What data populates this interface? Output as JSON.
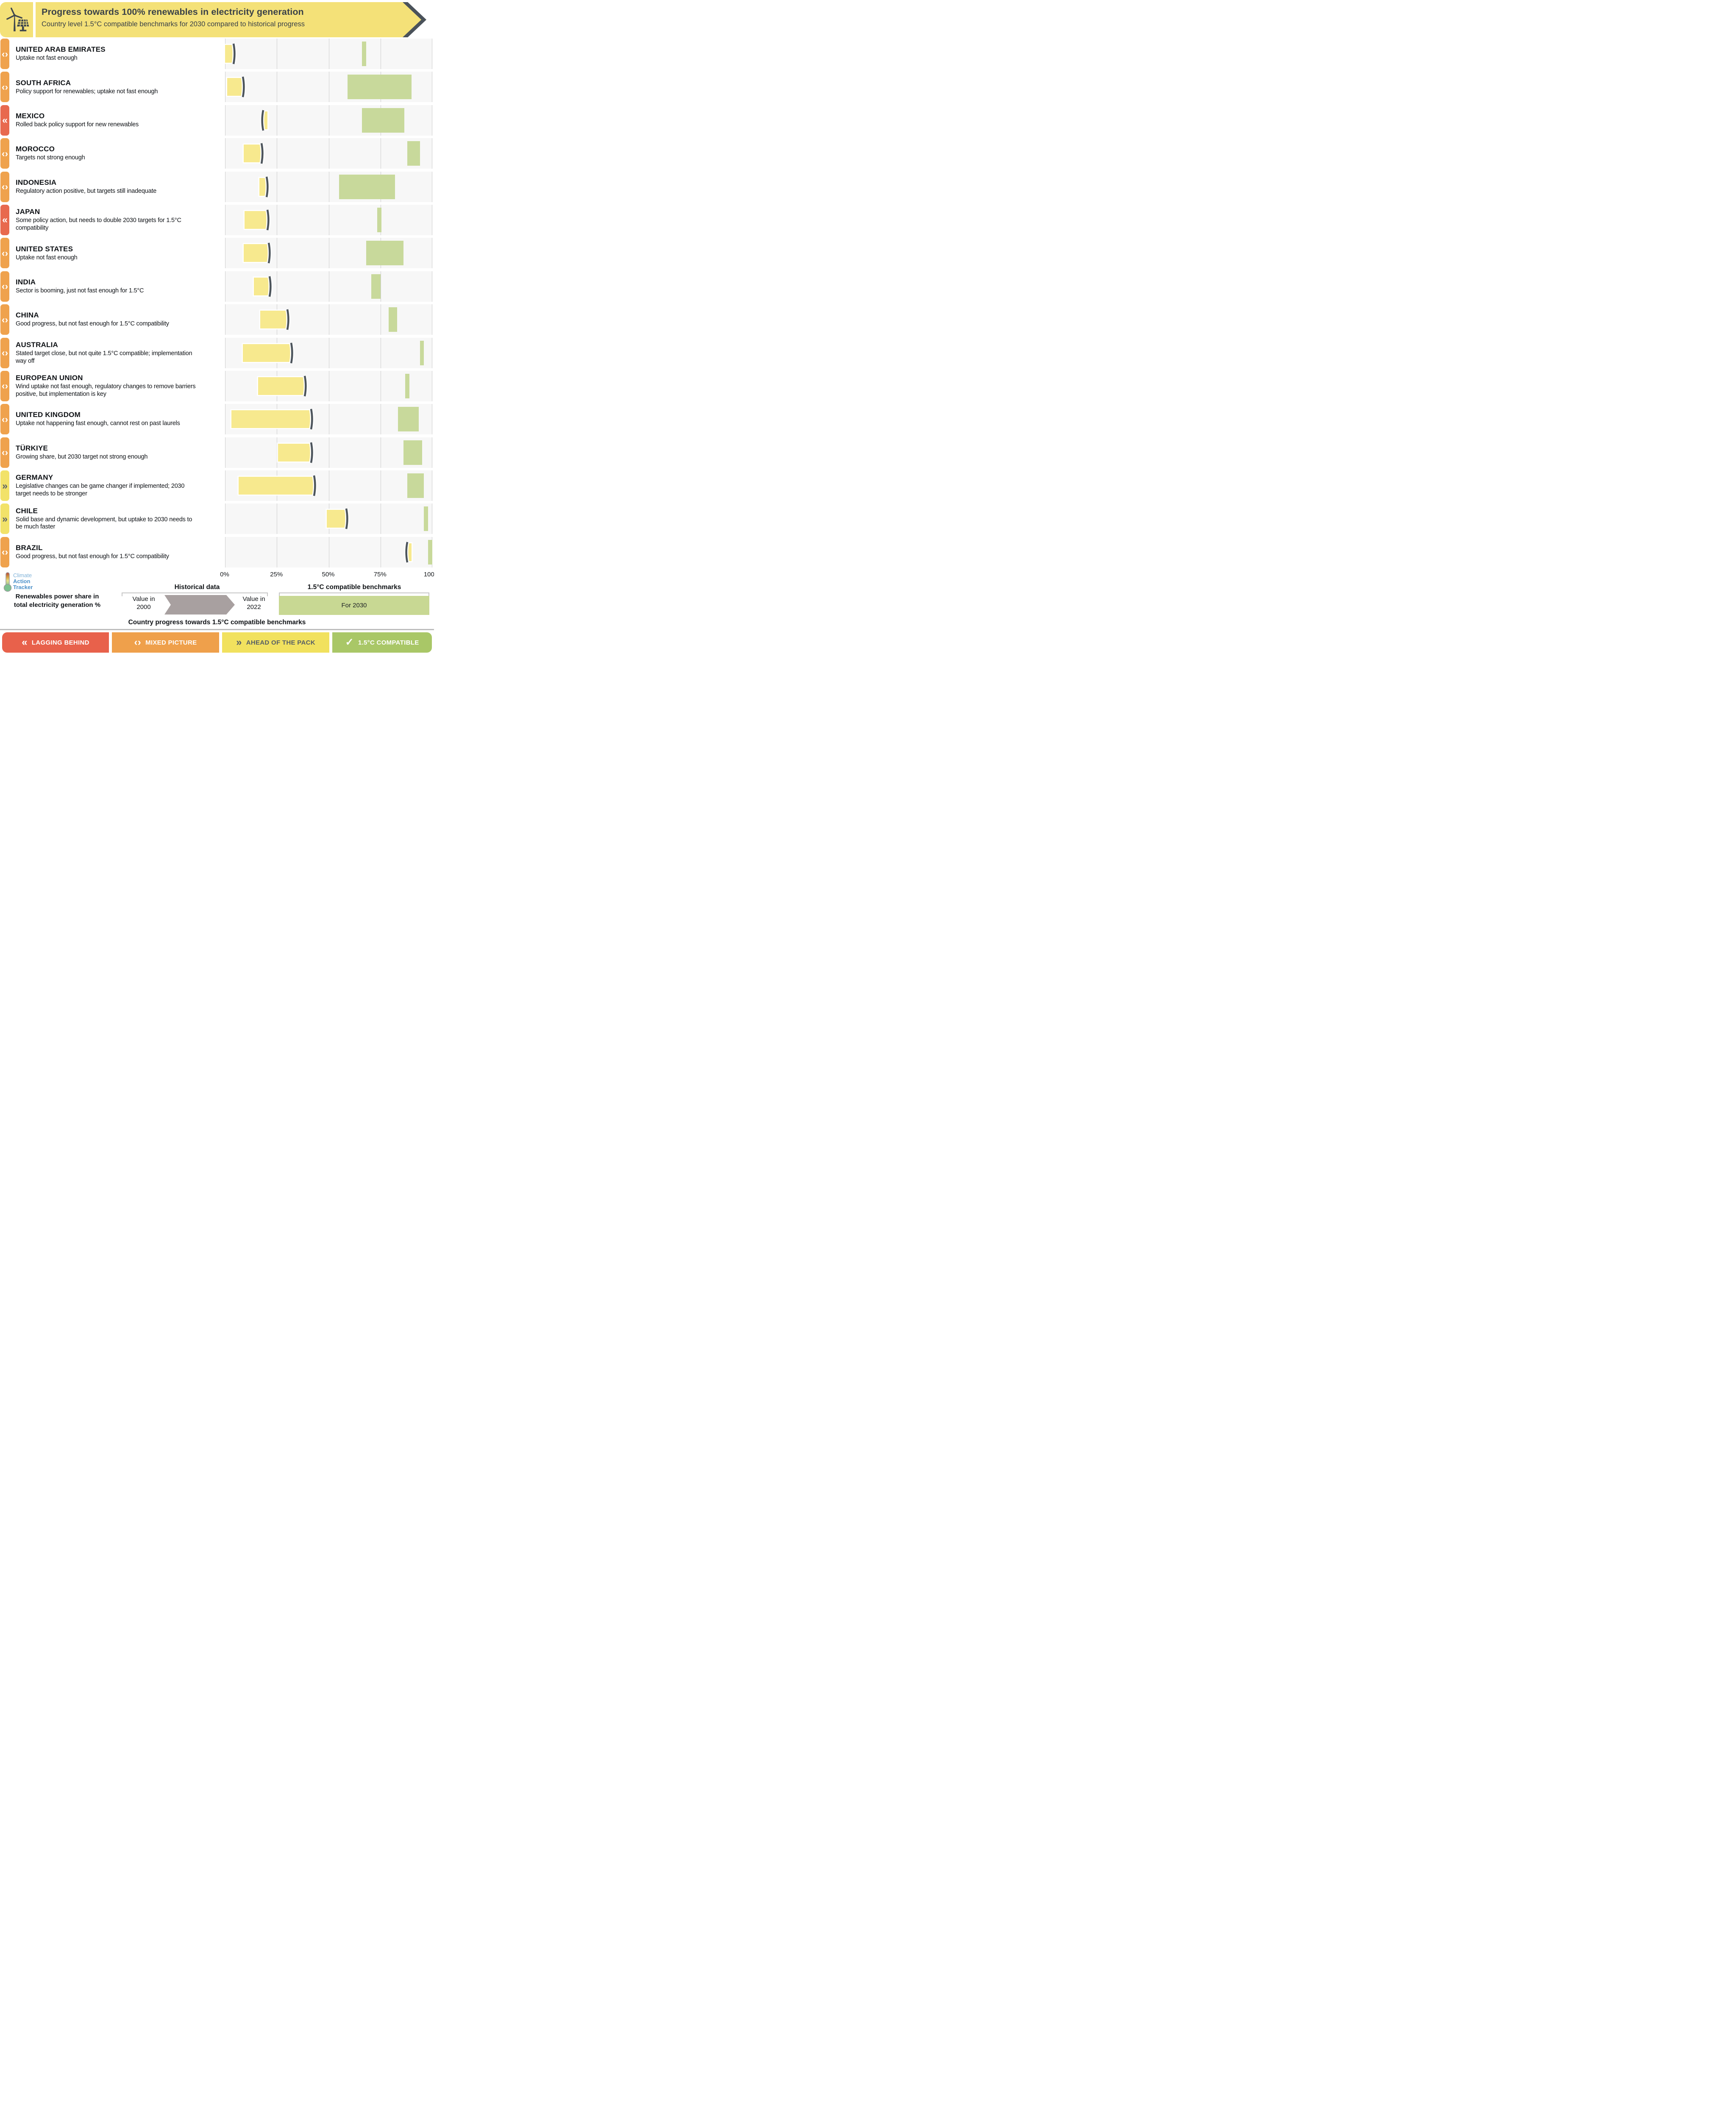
{
  "header": {
    "title": "Progress towards 100% renewables in electricity generation",
    "subtitle": "Country level 1.5°C compatible benchmarks for 2030 compared to historical progress"
  },
  "colors": {
    "header_yellow": "#f4e178",
    "banner_edge_dark": "#4a525a",
    "panel_bg": "#f7f7f7",
    "gridline": "#cdcdcd",
    "historical_bar_yellow": "#f7e98e",
    "value_2022_marker": "#4d555c",
    "benchmark_green": "#c8d99b",
    "legend_arrow_gray": "#a8a0a0"
  },
  "category_styles": {
    "lagging": {
      "color": "#e8694e",
      "icon": "«",
      "icon_color": "#ffffff"
    },
    "mixed": {
      "color": "#efa24d",
      "icon": "‹›",
      "icon_color": "#ffffff"
    },
    "ahead": {
      "color": "#f2e269",
      "icon": "»",
      "icon_color": "#565e66"
    }
  },
  "chart_data": {
    "type": "bar",
    "orientation": "horizontal",
    "title": "Progress towards 100% renewables in electricity generation",
    "xlabel": "Renewables power share in total electricity generation %",
    "x_range": [
      0,
      100
    ],
    "x_ticks": [
      "0%",
      "25%",
      "50%",
      "75%",
      "100%"
    ],
    "grid": true,
    "series": [
      {
        "name": "Historical data: value in 2000 to value in 2022"
      },
      {
        "name": "1.5°C compatible benchmark for 2030 (range)"
      }
    ],
    "countries": [
      {
        "name": "UNITED ARAB EMIRATES",
        "note": "Uptake not fast enough",
        "category": "mixed",
        "value_2000": 0,
        "value_2022": 4,
        "benchmark_low": 66,
        "benchmark_high": 68
      },
      {
        "name": "SOUTH AFRICA",
        "note": "Policy support for renewables; uptake not fast enough",
        "category": "mixed",
        "value_2000": 1,
        "value_2022": 8.5,
        "benchmark_low": 59,
        "benchmark_high": 90
      },
      {
        "name": "MEXICO",
        "note": "Rolled back policy support for new renewables",
        "category": "lagging",
        "value_2000": 20.5,
        "value_2022": 18.5,
        "benchmark_low": 66,
        "benchmark_high": 86.5
      },
      {
        "name": "MOROCCO",
        "note": "Targets not strong enough",
        "category": "mixed",
        "value_2000": 9,
        "value_2022": 17.5,
        "benchmark_low": 88,
        "benchmark_high": 94
      },
      {
        "name": "INDONESIA",
        "note": "Regulatory action positive, but targets still inadequate",
        "category": "mixed",
        "value_2000": 16.5,
        "value_2022": 20,
        "benchmark_low": 55,
        "benchmark_high": 82
      },
      {
        "name": "JAPAN",
        "note": "Some policy action, but needs to double 2030 targets for 1.5°C compatibility",
        "category": "lagging",
        "value_2000": 9.5,
        "value_2022": 20.5,
        "benchmark_low": 73.5,
        "benchmark_high": 75.5
      },
      {
        "name": "UNITED STATES",
        "note": "Uptake not fast enough",
        "category": "mixed",
        "value_2000": 9,
        "value_2022": 21,
        "benchmark_low": 68,
        "benchmark_high": 86
      },
      {
        "name": "INDIA",
        "note": "Sector is booming, just not fast enough for 1.5°C",
        "category": "mixed",
        "value_2000": 14,
        "value_2022": 21.5,
        "benchmark_low": 70.5,
        "benchmark_high": 75
      },
      {
        "name": "CHINA",
        "note": "Good progress, but not fast enough for 1.5°C compatibility",
        "category": "mixed",
        "value_2000": 17,
        "value_2022": 30,
        "benchmark_low": 79,
        "benchmark_high": 83
      },
      {
        "name": "AUSTRALIA",
        "note": "Stated target close, but not quite 1.5°C compatible; implementation way off",
        "category": "mixed",
        "value_2000": 8.5,
        "value_2022": 32,
        "benchmark_low": 94,
        "benchmark_high": 96
      },
      {
        "name": "EUROPEAN UNION",
        "note": "Wind uptake not fast enough, regulatory changes to remove barriers positive, but implementation is key",
        "category": "mixed",
        "value_2000": 16,
        "value_2022": 38.5,
        "benchmark_low": 87,
        "benchmark_high": 89
      },
      {
        "name": "UNITED KINGDOM",
        "note": "Uptake not happening fast enough, cannot rest on past laurels",
        "category": "mixed",
        "value_2000": 3,
        "value_2022": 41.5,
        "benchmark_low": 83.5,
        "benchmark_high": 93.5
      },
      {
        "name": "TÜRKIYE",
        "note": "Growing share, but 2030 target not strong enough",
        "category": "mixed",
        "value_2000": 25.5,
        "value_2022": 41.5,
        "benchmark_low": 86,
        "benchmark_high": 95
      },
      {
        "name": "GERMANY",
        "note": "Legislative changes can be game changer if implemented; 2030 target needs to be stronger",
        "category": "ahead",
        "value_2000": 6.5,
        "value_2022": 43,
        "benchmark_low": 88,
        "benchmark_high": 96
      },
      {
        "name": "CHILE",
        "note": "Solid base and dynamic development, but uptake to 2030 needs to be much faster",
        "category": "ahead",
        "value_2000": 49,
        "value_2022": 58.5,
        "benchmark_low": 96,
        "benchmark_high": 98
      },
      {
        "name": "BRAZIL",
        "note": "Good progress, but not fast enough for 1.5°C compatibility",
        "category": "mixed",
        "value_2000": 90,
        "value_2022": 88,
        "benchmark_low": 98,
        "benchmark_high": 100
      }
    ]
  },
  "legend": {
    "historical_title": "Historical data",
    "benchmark_title": "1.5°C compatible benchmarks",
    "value_2000_label": "Value in 2000",
    "value_2022_label": "Value in 2022",
    "for_2030_label": "For 2030",
    "caption_line1": "Renewables power share in",
    "caption_line2": "total electricity generation %"
  },
  "logo": {
    "line1": "Climate",
    "line2": "Action",
    "line3": "Tracker"
  },
  "footer": {
    "title": "Country progress towards 1.5°C compatible benchmarks",
    "categories": [
      {
        "id": "lagging",
        "label": "LAGGING BEHIND",
        "icon": "«",
        "color": "#e8614b",
        "text_color": "#ffffff"
      },
      {
        "id": "mixed",
        "label": "MIXED PICTURE",
        "icon": "‹›",
        "color": "#efa04b",
        "text_color": "#ffffff"
      },
      {
        "id": "ahead",
        "label": "AHEAD OF THE PACK",
        "icon": "»",
        "color": "#f1e15e",
        "text_color": "#565e66"
      },
      {
        "id": "compatible",
        "label": "1.5°C COMPATIBLE",
        "icon": "✓",
        "color": "#a9c767",
        "text_color": "#ffffff"
      }
    ]
  }
}
